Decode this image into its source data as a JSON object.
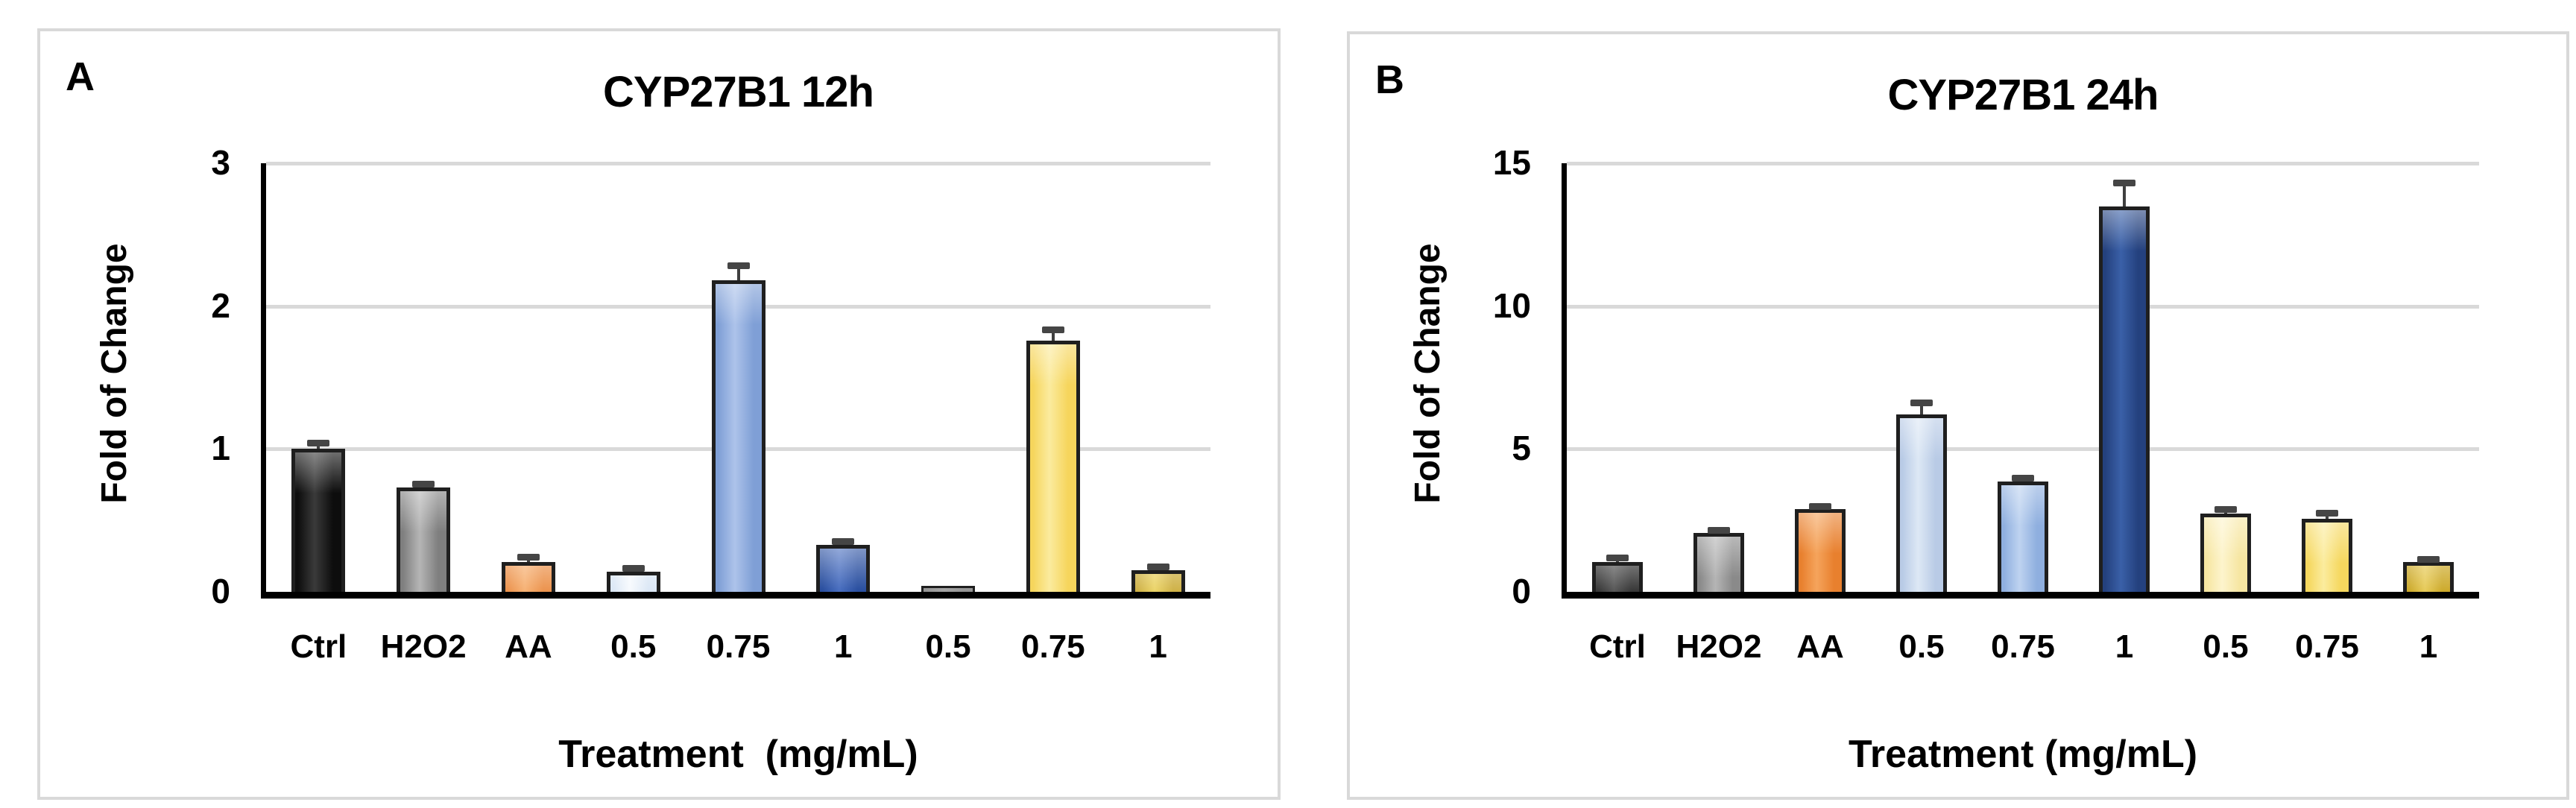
{
  "figure": {
    "background": "#ffffff",
    "panel_border_color": "#d9d9d9",
    "gridline_color": "#d9d9d9",
    "axis_color": "#000000",
    "bar_outline_color": "#1f1f1f",
    "error_bar_color": "#3f3f3f"
  },
  "chart_data": [
    {
      "type": "bar",
      "panel_label": "A",
      "title": "CYP27B1 12h",
      "xlabel": "Treatment  (mg/mL)",
      "ylabel": "Fold of Change",
      "ylim": [
        0,
        3
      ],
      "yticks": [
        0,
        1,
        2,
        3
      ],
      "grid": true,
      "legend": false,
      "categories": [
        "Ctrl",
        "H2O2",
        "AA",
        "0.5",
        "0.75",
        "1",
        "0.5",
        "0.75",
        "1"
      ],
      "values": [
        1.0,
        0.73,
        0.21,
        0.14,
        2.18,
        0.33,
        0.04,
        1.76,
        0.15
      ],
      "errors": [
        0.04,
        0.02,
        0.03,
        0.02,
        0.1,
        0.02,
        0,
        0.07,
        0.02
      ],
      "bar_colors": [
        "#0d0d0d",
        "#7f7f7f",
        "#e8802e",
        "#cfdff2",
        "#7f9fd6",
        "#2b50a0",
        "#555555",
        "#f6d55c",
        "#c09a10"
      ],
      "bar_highlight_colors": [
        "#3a3a3a",
        "#b5b5b5",
        "#f5a45c",
        "#f4f8fd",
        "#adc3ea",
        "#4a6fc0",
        "#6e6e6e",
        "#fbeb9e",
        "#e6c83c"
      ]
    },
    {
      "type": "bar",
      "panel_label": "B",
      "title": "CYP27B1 24h",
      "xlabel": "Treatment (mg/mL)",
      "ylabel": "Fold of Change",
      "ylim": [
        0,
        15
      ],
      "yticks": [
        0,
        5,
        10,
        15
      ],
      "grid": true,
      "legend": false,
      "categories": [
        "Ctrl",
        "H2O2",
        "AA",
        "0.5",
        "0.75",
        "1",
        "0.5",
        "0.75",
        "1"
      ],
      "values": [
        1.05,
        2.05,
        2.9,
        6.2,
        3.85,
        13.5,
        2.75,
        2.55,
        1.05
      ],
      "errors": [
        0.12,
        0.08,
        0.08,
        0.4,
        0.12,
        0.8,
        0.12,
        0.18,
        0.08
      ],
      "bar_colors": [
        "#141414",
        "#8a8a8a",
        "#e8802e",
        "#b9cbe6",
        "#8fafdf",
        "#24417e",
        "#f6e6a2",
        "#f5d75e",
        "#c49b06"
      ],
      "bar_highlight_colors": [
        "#3a3a3a",
        "#b5b5b5",
        "#f5a45c",
        "#dde8f5",
        "#bed3f0",
        "#3a60a8",
        "#fdf4cd",
        "#fbec9e",
        "#e3c23c"
      ]
    }
  ]
}
